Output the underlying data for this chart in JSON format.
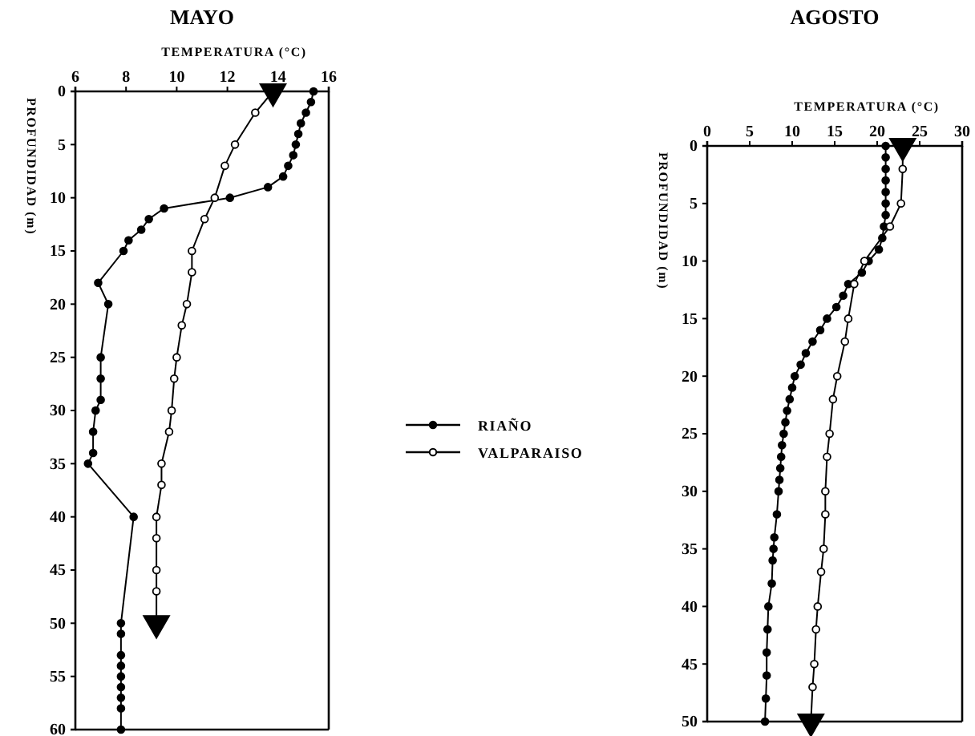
{
  "chart_data": [
    {
      "type": "line",
      "title": "MAYO",
      "xlabel": "TEMPERATURA (°C)",
      "ylabel": "PROFUNDIDAD (m)",
      "xlim": [
        6,
        16
      ],
      "xticks": [
        6,
        8,
        10,
        12,
        14,
        16
      ],
      "ylim": [
        60,
        0
      ],
      "yticks": [
        0,
        5,
        10,
        15,
        20,
        25,
        30,
        35,
        40,
        45,
        50,
        55,
        60
      ],
      "legend": "right",
      "grid": false,
      "series": [
        {
          "name": "RIAÑO",
          "color": "#000000",
          "marker": "circle",
          "x": [
            15.4,
            15.3,
            15.1,
            14.9,
            14.8,
            14.7,
            14.6,
            14.4,
            14.2,
            13.6,
            12.1,
            9.5,
            8.9,
            8.6,
            8.1,
            7.9,
            6.9,
            7.3,
            7.0,
            7.0,
            7.0,
            6.8,
            6.7,
            6.7,
            6.5,
            8.3,
            7.8,
            7.8,
            7.8,
            7.8,
            7.8,
            7.8,
            7.8,
            7.8,
            7.8
          ],
          "values": [
            0,
            1,
            2,
            3,
            4,
            5,
            6,
            7,
            8,
            9,
            10,
            11,
            12,
            13,
            14,
            15,
            18,
            20,
            25,
            27,
            29,
            30,
            32,
            34,
            35,
            40,
            50,
            51,
            53,
            54,
            55,
            56,
            57,
            58,
            60
          ]
        },
        {
          "name": "VALPARAISO",
          "color": "#000000",
          "marker": "circle",
          "x": [
            13.8,
            13.1,
            12.3,
            11.9,
            11.5,
            11.1,
            10.6,
            10.6,
            10.4,
            10.2,
            10.0,
            9.9,
            9.8,
            9.7,
            9.4,
            9.4,
            9.2,
            9.2,
            9.2,
            9.2,
            9.2
          ],
          "values": [
            0,
            2,
            5,
            7,
            10,
            12,
            15,
            17,
            20,
            22,
            25,
            27,
            30,
            32,
            35,
            37,
            40,
            42,
            45,
            47,
            50
          ]
        },
        {
          "type": "scatter",
          "color": "#000000",
          "marker": "triangle",
          "x": [
            13.8,
            9.2
          ],
          "values": [
            0,
            50
          ]
        }
      ]
    },
    {
      "type": "line",
      "title": "AGOSTO",
      "xlabel": "TEMPERATURA (°C)",
      "ylabel": "PROFUNDIDAD (m)",
      "xlim": [
        0,
        30
      ],
      "xticks": [
        0,
        5,
        10,
        15,
        20,
        25,
        30
      ],
      "ylim": [
        50,
        0
      ],
      "yticks": [
        0,
        5,
        10,
        15,
        20,
        25,
        30,
        35,
        40,
        45,
        50
      ],
      "legend": false,
      "grid": false,
      "series": [
        {
          "color": "#000000",
          "marker": "circle",
          "x": [
            21,
            21,
            21,
            21,
            21,
            21,
            21,
            20.8,
            20.6,
            20.2,
            19.0,
            18.2,
            16.6,
            16.0,
            15.2,
            14.1,
            13.3,
            12.4,
            11.6,
            11.0,
            10.3,
            10.0,
            9.7,
            9.4,
            9.2,
            9.0,
            8.8,
            8.7,
            8.6,
            8.5,
            8.4,
            8.2,
            7.9,
            7.8,
            7.7,
            7.6,
            7.2,
            7.1,
            7.0,
            7.0,
            6.9,
            6.8
          ],
          "values": [
            0,
            1,
            2,
            3,
            4,
            5,
            6,
            7,
            8,
            9,
            10,
            11,
            12,
            13,
            14,
            15,
            16,
            17,
            18,
            19,
            20,
            21,
            22,
            23,
            24,
            25,
            26,
            27,
            28,
            29,
            30,
            32,
            34,
            35,
            36,
            38,
            40,
            42,
            44,
            46,
            48,
            50
          ]
        },
        {
          "color": "#000000",
          "marker": "circle",
          "x": [
            23.0,
            23.0,
            22.8,
            21.5,
            18.5,
            17.3,
            16.6,
            16.2,
            15.3,
            14.8,
            14.4,
            14.1,
            13.9,
            13.9,
            13.7,
            13.4,
            13.0,
            12.8,
            12.6,
            12.4,
            12.2
          ],
          "values": [
            0,
            2,
            5,
            7,
            10,
            12,
            15,
            17,
            20,
            22,
            25,
            27,
            30,
            32,
            35,
            37,
            40,
            42,
            45,
            47,
            50
          ]
        },
        {
          "type": "scatter",
          "color": "#000000",
          "marker": "triangle",
          "x": [
            23.0,
            12.2
          ],
          "values": [
            0,
            50
          ]
        }
      ]
    }
  ]
}
